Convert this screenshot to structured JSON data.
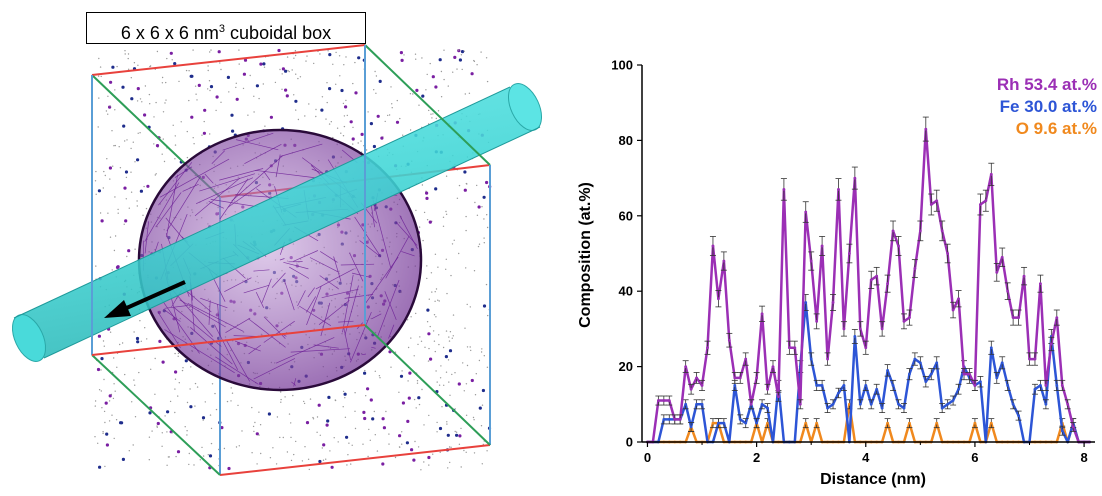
{
  "left_panel": {
    "box_label_prefix": "6 x 6 x 6 nm",
    "box_label_exponent": "3",
    "box_label_suffix": " cuboidal box",
    "colors": {
      "box_edge_red": "#e8413c",
      "box_edge_green": "#2e9e58",
      "box_edge_blue": "#5a9ed6",
      "cylinder": "#3fd6d6",
      "sphere_mesh": "#7a1fa2",
      "atom_dots": "#3c3c8c"
    }
  },
  "chart_data": {
    "type": "line",
    "xlabel": "Distance (nm)",
    "ylabel": "Composition (at.%)",
    "xlim": [
      -0.1,
      8.2
    ],
    "ylim": [
      0,
      100
    ],
    "xticks": [
      0,
      2,
      4,
      6,
      8
    ],
    "yticks": [
      0,
      20,
      40,
      60,
      80,
      100
    ],
    "legend_position": "top-right",
    "error_bars": true,
    "x": [
      0.0,
      0.1,
      0.2,
      0.3,
      0.4,
      0.5,
      0.6,
      0.7,
      0.8,
      0.9,
      1.0,
      1.1,
      1.2,
      1.3,
      1.4,
      1.5,
      1.6,
      1.7,
      1.8,
      1.9,
      2.0,
      2.1,
      2.2,
      2.3,
      2.4,
      2.5,
      2.6,
      2.7,
      2.8,
      2.9,
      3.0,
      3.1,
      3.2,
      3.3,
      3.4,
      3.5,
      3.6,
      3.7,
      3.8,
      3.9,
      4.0,
      4.1,
      4.2,
      4.3,
      4.4,
      4.5,
      4.6,
      4.7,
      4.8,
      4.9,
      5.0,
      5.1,
      5.2,
      5.3,
      5.4,
      5.5,
      5.6,
      5.7,
      5.8,
      5.9,
      6.0,
      6.1,
      6.2,
      6.3,
      6.4,
      6.5,
      6.6,
      6.7,
      6.8,
      6.9,
      7.0,
      7.1,
      7.2,
      7.3,
      7.4,
      7.5,
      7.6,
      7.7,
      7.8,
      7.9,
      8.0,
      8.1
    ],
    "series": [
      {
        "name": "Rh 53.4 at.%",
        "color": "#9b2fb5",
        "values": [
          0,
          0,
          11,
          11,
          11,
          6,
          6,
          20,
          14,
          17,
          15,
          25,
          52,
          38,
          48,
          27,
          17,
          17,
          22,
          10,
          17,
          34,
          14,
          20,
          12,
          67,
          25,
          25,
          10,
          61,
          48,
          32,
          52,
          22,
          37,
          67,
          30,
          50,
          70,
          30,
          25,
          43,
          44,
          30,
          42,
          56,
          52,
          32,
          33,
          46,
          56,
          83,
          63,
          64,
          56,
          50,
          35,
          38,
          18,
          18,
          15,
          63,
          64,
          71,
          45,
          49,
          40,
          33,
          33,
          44,
          22,
          22,
          42,
          15,
          26,
          33,
          15,
          10,
          4,
          0,
          0,
          0
        ]
      },
      {
        "name": "Fe 30.0 at.%",
        "color": "#2d55d6",
        "values": [
          0,
          0,
          0,
          6,
          6,
          6,
          6,
          10,
          4,
          10,
          10,
          0,
          0,
          5,
          5,
          0,
          15,
          6,
          5,
          10,
          5,
          10,
          9,
          0,
          15,
          0,
          0,
          0,
          20,
          37,
          22,
          15,
          15,
          9,
          10,
          13,
          15,
          0,
          28,
          10,
          15,
          10,
          14,
          9,
          19,
          15,
          10,
          9,
          18,
          22,
          21,
          16,
          18,
          21,
          9,
          10,
          11,
          14,
          20,
          17,
          15,
          16,
          0,
          25,
          17,
          21,
          15,
          10,
          7,
          0,
          0,
          14,
          15,
          10,
          28,
          15,
          3,
          0,
          5,
          0,
          0,
          0
        ]
      },
      {
        "name": "O 9.6 at.%",
        "color": "#f0891e",
        "values": [
          0,
          0,
          0,
          0,
          0,
          0,
          0,
          0,
          4,
          0,
          0,
          0,
          5,
          5,
          0,
          0,
          0,
          0,
          0,
          0,
          5,
          0,
          5,
          0,
          0,
          0,
          0,
          0,
          0,
          5,
          0,
          5,
          0,
          0,
          0,
          0,
          0,
          10,
          0,
          0,
          0,
          0,
          0,
          0,
          5,
          0,
          0,
          0,
          5,
          0,
          0,
          0,
          0,
          5,
          0,
          0,
          0,
          0,
          0,
          0,
          5,
          0,
          0,
          5,
          0,
          0,
          0,
          0,
          0,
          0,
          0,
          0,
          0,
          0,
          0,
          0,
          5,
          0,
          5,
          0,
          0,
          0
        ]
      }
    ]
  }
}
